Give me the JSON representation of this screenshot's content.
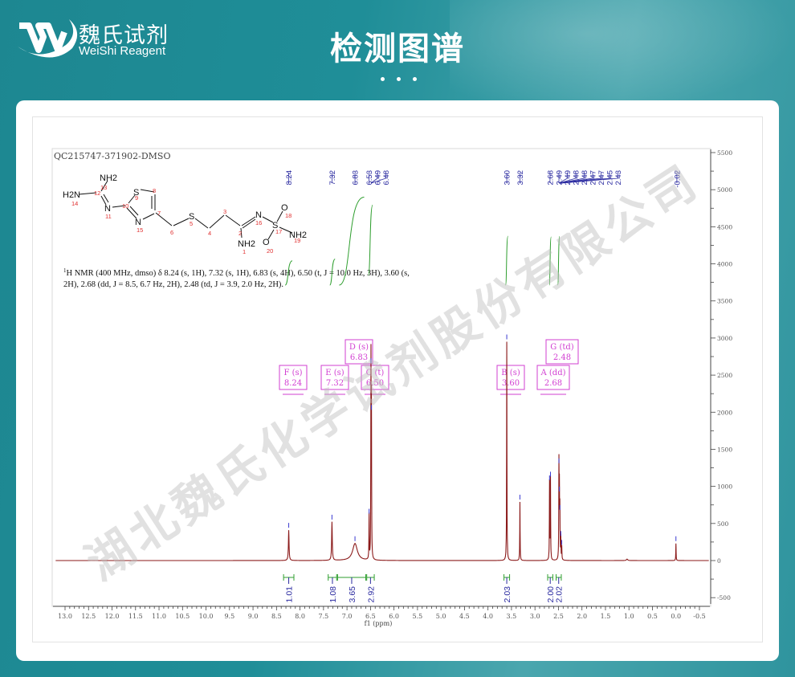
{
  "header": {
    "brand_cn": "魏氏试剂",
    "brand_en": "WeiShi Reagent",
    "title": "检测图谱"
  },
  "watermark": "湖北魏氏化学试剂股份有限公司",
  "colors": {
    "spectrum": "#8b1a1a",
    "peak_labels": "#2a2aa0",
    "integrals": "#2e9e2e",
    "multiplets": "#d23fd2",
    "structure_numbers": "#e03030",
    "background": "#1f8e98"
  },
  "structure": {
    "atoms": [
      "H2N",
      "NH2",
      "N",
      "S",
      "N",
      "S",
      "N",
      "S",
      "O",
      "NH2",
      "O",
      "NH2"
    ],
    "numbers": [
      "14",
      "13",
      "12",
      "11",
      "10",
      "9",
      "8",
      "7",
      "15",
      "6",
      "5",
      "4",
      "3",
      "2",
      "16",
      "17",
      "18",
      "19",
      "20",
      "1"
    ]
  },
  "chart_data": {
    "type": "line",
    "title": "QC215747-371902-DMSO",
    "description_text_line1": "H NMR (400 MHz, dmso) δ 8.24 (s, 1H), 7.32 (s, 1H), 6.83 (s, 4H), 6.50 (t, J = 10.0 Hz, 3H), 3.60 (s,",
    "description_text_line2": "2H), 2.68 (dd, J = 8.5, 6.7 Hz, 2H), 2.48 (td, J = 3.9, 2.0 Hz, 2H).",
    "superscript": "1",
    "xlabel": "f1 (ppm)",
    "ylabel": "",
    "xlim": [
      13.0,
      -0.5
    ],
    "ylim": [
      -500,
      5500
    ],
    "x_ticks": [
      "13.0",
      "12.5",
      "12.0",
      "11.5",
      "11.0",
      "10.5",
      "10.0",
      "9.5",
      "9.0",
      "8.5",
      "8.0",
      "7.5",
      "7.0",
      "6.5",
      "6.0",
      "5.5",
      "5.0",
      "4.5",
      "4.0",
      "3.5",
      "3.0",
      "2.5",
      "2.0",
      "1.5",
      "1.0",
      "0.5",
      "0.0",
      "-0.5"
    ],
    "y_ticks": [
      "5500",
      "5000",
      "4500",
      "4000",
      "3500",
      "3000",
      "2500",
      "2000",
      "1500",
      "1000",
      "500",
      "0",
      "-500"
    ],
    "peaks": [
      {
        "ppm": 8.24,
        "intensity": 410
      },
      {
        "ppm": 7.32,
        "intensity": 520
      },
      {
        "ppm": 6.83,
        "intensity": 230
      },
      {
        "ppm": 6.53,
        "intensity": 600
      },
      {
        "ppm": 6.49,
        "intensity": 2630
      },
      {
        "ppm": 6.48,
        "intensity": 2000
      },
      {
        "ppm": 3.6,
        "intensity": 2950
      },
      {
        "ppm": 3.32,
        "intensity": 790
      },
      {
        "ppm": 2.69,
        "intensity": 1050
      },
      {
        "ppm": 2.67,
        "intensity": 1100
      },
      {
        "ppm": 2.49,
        "intensity": 1280
      },
      {
        "ppm": 2.48,
        "intensity": 900
      },
      {
        "ppm": 2.47,
        "intensity": 650
      },
      {
        "ppm": 2.45,
        "intensity": 300
      },
      {
        "ppm": 2.43,
        "intensity": 180
      },
      {
        "ppm": 1.04,
        "intensity": 20
      },
      {
        "ppm": 0.0,
        "intensity": 230
      }
    ],
    "peak_labels": [
      "8.24",
      "7.32",
      "6.83",
      "6.53",
      "6.49",
      "6.48",
      "3.60",
      "3.32",
      "2.68",
      "2.49",
      "2.49",
      "2.48",
      "2.48",
      "2.47",
      "2.47",
      "2.45",
      "2.43",
      "-0.02"
    ],
    "integrals": [
      {
        "from": 8.35,
        "to": 8.13,
        "value": "1.01"
      },
      {
        "from": 7.4,
        "to": 7.22,
        "value": "1.08"
      },
      {
        "from": 7.2,
        "to": 6.6,
        "value": "3.65"
      },
      {
        "from": 6.58,
        "to": 6.42,
        "value": "2.92"
      },
      {
        "from": 3.66,
        "to": 3.54,
        "value": "2.03"
      },
      {
        "from": 2.73,
        "to": 2.62,
        "value": "2.00"
      },
      {
        "from": 2.55,
        "to": 2.44,
        "value": "2.02"
      }
    ],
    "multiplets": [
      {
        "name": "F (s)",
        "shift": "8.24"
      },
      {
        "name": "E (s)",
        "shift": "7.32"
      },
      {
        "name": "D (s)",
        "shift": "6.83"
      },
      {
        "name": "C (t)",
        "shift": "6.50"
      },
      {
        "name": "B (s)",
        "shift": "3.60"
      },
      {
        "name": "A (dd)",
        "shift": "2.68"
      },
      {
        "name": "G (td)",
        "shift": "2.48"
      }
    ],
    "grid": false,
    "legend": "none"
  }
}
